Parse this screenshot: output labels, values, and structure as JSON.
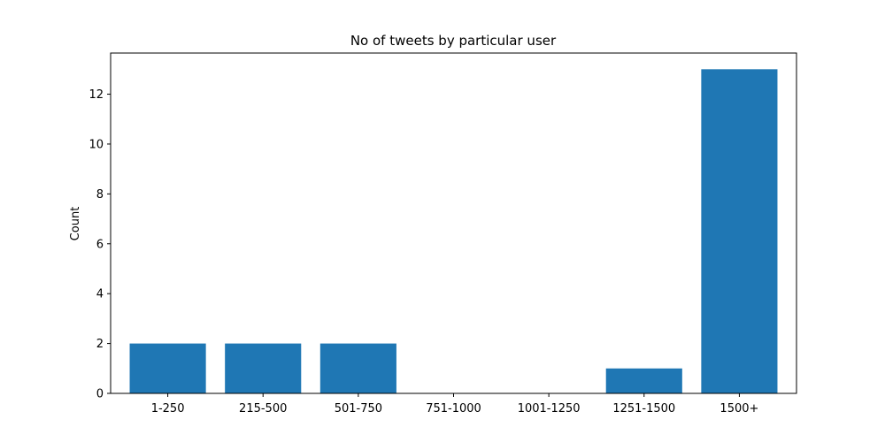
{
  "chart_data": {
    "type": "bar",
    "title": "No of tweets by particular user",
    "xlabel": "",
    "ylabel": "Count",
    "categories": [
      "1-250",
      "215-500",
      "501-750",
      "751-1000",
      "1001-1250",
      "1251-1500",
      "1500+"
    ],
    "values": [
      2,
      2,
      2,
      0,
      0,
      1,
      13
    ],
    "ylim": [
      0,
      13.65
    ],
    "yticks": [
      0,
      2,
      4,
      6,
      8,
      10,
      12
    ],
    "grid": false,
    "bar_color": "#1f77b4"
  }
}
